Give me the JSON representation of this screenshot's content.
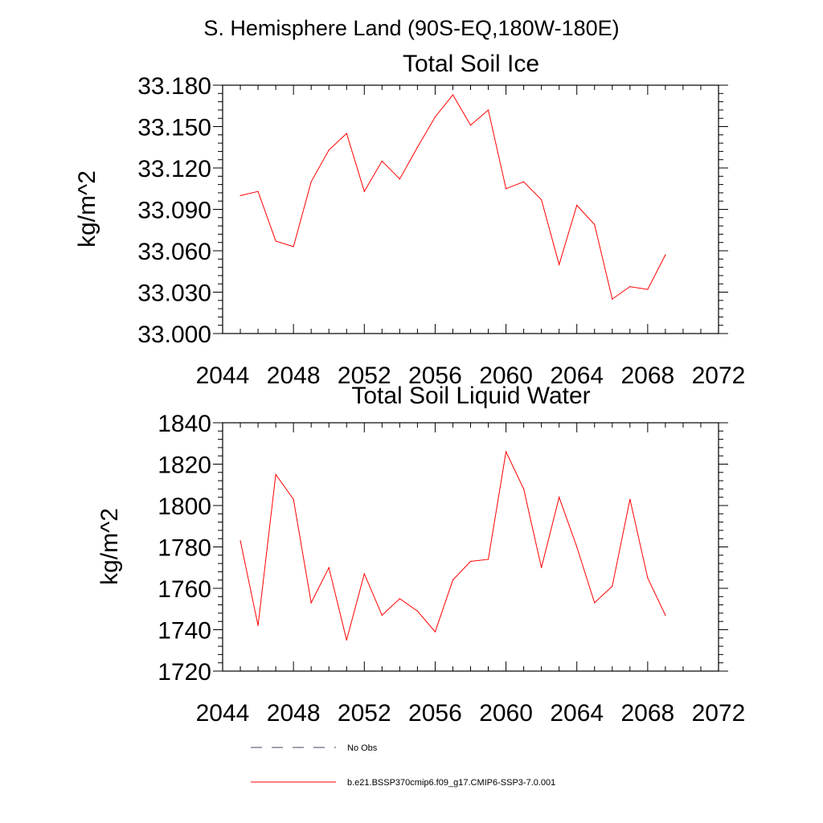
{
  "supertitle": "S. Hemisphere Land (90S-EQ,180W-180E)",
  "chart_data": [
    {
      "type": "line",
      "title": "Total Soil Ice",
      "ylabel": "kg/m^2",
      "xlabel": "",
      "xlim": [
        2044,
        2072
      ],
      "ylim": [
        33.0,
        33.18
      ],
      "xticks": [
        "2044",
        "2048",
        "2052",
        "2056",
        "2060",
        "2064",
        "2068",
        "2072"
      ],
      "yticks": [
        "33.000",
        "33.030",
        "33.060",
        "33.090",
        "33.120",
        "33.150",
        "33.180"
      ],
      "series": [
        {
          "name": "b.e21.BSSP370cmip6.f09_g17.CMIP6-SSP3-7.0.001",
          "color": "#ff0000",
          "x": [
            2045,
            2046,
            2047,
            2048,
            2049,
            2050,
            2051,
            2052,
            2053,
            2054,
            2055,
            2056,
            2057,
            2058,
            2059,
            2060,
            2061,
            2062,
            2063,
            2064,
            2065,
            2066,
            2067,
            2068,
            2069
          ],
          "values": [
            33.1,
            33.103,
            33.067,
            33.063,
            33.11,
            33.133,
            33.145,
            33.103,
            33.125,
            33.112,
            33.135,
            33.157,
            33.173,
            33.151,
            33.162,
            33.105,
            33.11,
            33.097,
            33.05,
            33.093,
            33.079,
            33.025,
            33.034,
            33.032,
            33.057
          ]
        }
      ]
    },
    {
      "type": "line",
      "title": "Total Soil Liquid Water",
      "ylabel": "kg/m^2",
      "xlabel": "",
      "xlim": [
        2044,
        2072
      ],
      "ylim": [
        1720,
        1840
      ],
      "xticks": [
        "2044",
        "2048",
        "2052",
        "2056",
        "2060",
        "2064",
        "2068",
        "2072"
      ],
      "yticks": [
        "1720",
        "1740",
        "1760",
        "1780",
        "1800",
        "1820",
        "1840"
      ],
      "series": [
        {
          "name": "b.e21.BSSP370cmip6.f09_g17.CMIP6-SSP3-7.0.001",
          "color": "#ff0000",
          "x": [
            2045,
            2046,
            2047,
            2048,
            2049,
            2050,
            2051,
            2052,
            2053,
            2054,
            2055,
            2056,
            2057,
            2058,
            2059,
            2060,
            2061,
            2062,
            2063,
            2064,
            2065,
            2066,
            2067,
            2068,
            2069
          ],
          "values": [
            1783,
            1742,
            1815,
            1803,
            1753,
            1770,
            1735,
            1767,
            1747,
            1755,
            1749,
            1739,
            1764,
            1773,
            1774,
            1826,
            1808,
            1770,
            1804,
            1780,
            1753,
            1761,
            1803,
            1765,
            1747
          ]
        }
      ]
    }
  ],
  "legend": {
    "items": [
      {
        "label": "No Obs",
        "style": "dashed",
        "color": "#404060"
      },
      {
        "label": "b.e21.BSSP370cmip6.f09_g17.CMIP6-SSP3-7.0.001",
        "style": "solid",
        "color": "#ff0000"
      }
    ]
  }
}
